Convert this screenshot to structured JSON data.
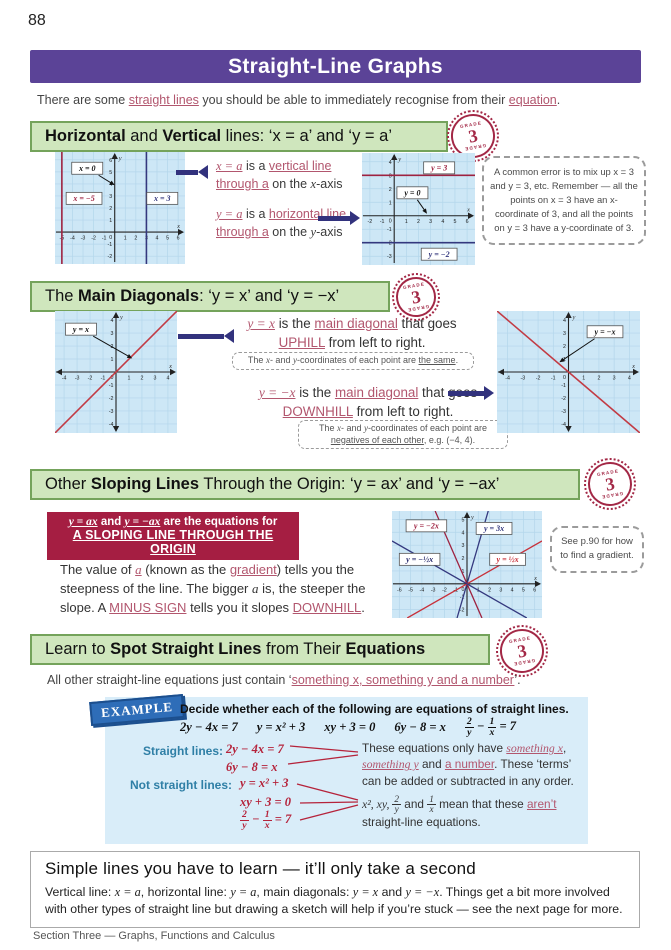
{
  "colors": {
    "purple": "#5b4397",
    "green_bg": "#cfe6bd",
    "green_border": "#74a35b",
    "crimson": "#b5233b",
    "navy": "#32327d",
    "rose": "#b2566e",
    "teal": "#2f7fa6",
    "graph_bg": "#cde7f6"
  },
  "page_number": "88",
  "banner": {
    "title": "Straight-Line Graphs"
  },
  "intro": [
    "There are some ",
    "straight lines",
    " you should be able to immediately recognise from their ",
    "equation",
    "."
  ],
  "grade": {
    "num": "3",
    "word": "GRADE"
  },
  "s1": {
    "title": [
      "Horizontal",
      " and ",
      "Vertical",
      " lines:  ‘x = a’ and ‘y = a’"
    ],
    "ann1": [
      "x = a",
      " is a ",
      "vertical line",
      " ",
      "through a",
      " on the ",
      "x",
      "-axis"
    ],
    "ann2": [
      "y = a",
      " is a ",
      "horizontal line",
      " ",
      "through a",
      " on the ",
      "y",
      "-axis"
    ],
    "note": "A common error is to mix up x = 3 and y = 3, etc.  Remember — all the points on x = 3 have an x-coordinate of 3, and all the points on y = 3 have a y-coordinate of 3."
  },
  "s2": {
    "title": [
      "The ",
      "Main Diagonals",
      ": ‘y = x’ and ‘y = −x’"
    ],
    "t1": [
      "y = x",
      " is the ",
      "main diagonal",
      " that goes ",
      "UPHILL",
      " from left to right."
    ],
    "n1": [
      "The ",
      "x",
      "- and ",
      "y",
      "-coordinates of each point are ",
      "the same",
      "."
    ],
    "t2": [
      "y = −x",
      " is the ",
      "main diagonal",
      " that goes ",
      "DOWNHILL",
      " from left to right."
    ],
    "n2": [
      "The ",
      "x",
      "- and ",
      "y",
      "-coordinates of each point are ",
      "negatives of each other",
      ", e.g. (−4, 4)."
    ]
  },
  "s3": {
    "title": [
      "Other ",
      "Sloping Lines",
      " Through the Origin:  ‘y = ax’  and  ‘y = −ax’"
    ],
    "box": [
      "y = ax",
      "  and  ",
      "y = −ax",
      "  are the equations for",
      "A SLOPING LINE THROUGH THE ORIGIN"
    ],
    "body": [
      "The value of ",
      "a",
      " (known as the ",
      "gradient",
      ") tells you the steepness of the line.  The bigger ",
      "a",
      " is, the steeper the slope.  A ",
      "MINUS SIGN",
      " tells you it slopes ",
      "DOWNHILL",
      "."
    ],
    "note": "See p.90 for how to find a gradient."
  },
  "s4": {
    "title": [
      "Learn to ",
      "Spot Straight Lines",
      " from Their ",
      "Equations"
    ],
    "line": [
      "All other straight-line equations just contain ‘",
      "something x, something y and a number",
      "’."
    ]
  },
  "example": {
    "badge": "EXAMPLE",
    "prompt": "Decide whether each of the following are equations of straight lines.",
    "eq1": "2y − 4x = 7",
    "eq2": "y = x² + 3",
    "eq3": "xy + 3 = 0",
    "eq4": "6y − 8 = x",
    "frac": {
      "n1": "2",
      "d1": "y",
      "op": "−",
      "n2": "1",
      "d2": "x",
      "rhs": "= 7"
    },
    "straight_label": "Straight lines:",
    "not_label": "Not straight lines:",
    "s_eq1": "2y − 4x = 7",
    "s_eq2": "6y − 8 = x",
    "n_eq1": "y = x² + 3",
    "n_eq2": "xy + 3 = 0",
    "r1": [
      "These equations only have ",
      "something x",
      ", ",
      "something y",
      " and ",
      "a number",
      ".  These ‘terms’ can be added or subtracted in any order."
    ],
    "r2a": "x², xy, ",
    "r2f1": {
      "n": "2",
      "d": "y"
    },
    "r2b": " and ",
    "r2f2": {
      "n": "1",
      "d": "x"
    },
    "r2c": " mean that these ",
    "r2d": "aren’t",
    "r2e": " straight-line equations."
  },
  "bottom": {
    "heading": "Simple lines you have to learn — it’ll only take a second",
    "body": [
      "Vertical line: ",
      "x = a",
      ", horizontal line: ",
      "y = a",
      ", main diagonals: ",
      "y = x",
      " and ",
      "y = −x",
      ".  Things get a bit more involved with other types of straight line but drawing a sketch will help if you’re stuck — see the next page for more."
    ]
  },
  "footer": "Section Three — Graphs, Functions and Calculus",
  "chart_data": [
    {
      "name": "horizontal-vertical-graph",
      "type": "line",
      "xmin": -5,
      "xmax": 6,
      "ymin": -2,
      "ymax": 6,
      "pad": 0.65,
      "xlabel": "x",
      "ylabel": "y",
      "lines": [
        {
          "kind": "v",
          "a": -5,
          "color": "#9e2240",
          "w": 1.6
        },
        {
          "kind": "v",
          "a": 3,
          "color": "#34387e",
          "w": 1.6
        }
      ],
      "labels": [
        {
          "text": "x = 0",
          "x": -2.6,
          "y": 5.3,
          "color": "#111",
          "ax": 0,
          "ay": 3.9
        },
        {
          "text": "x = −5",
          "x": -2.9,
          "y": 2.8,
          "color": "#9e2240"
        },
        {
          "text": "x = 3",
          "x": 4.5,
          "y": 2.8,
          "color": "#34387e"
        }
      ]
    },
    {
      "name": "horizontal-lines-graph",
      "type": "line",
      "xmin": -2,
      "xmax": 6,
      "ymin": -3,
      "ymax": 4,
      "pad": 0.65,
      "xlabel": "x",
      "ylabel": "y",
      "lines": [
        {
          "kind": "h",
          "a": 3,
          "color": "#9e2240",
          "w": 1.6
        },
        {
          "kind": "h",
          "a": -2,
          "color": "#34387e",
          "w": 1.6
        }
      ],
      "labels": [
        {
          "text": "y = 3",
          "x": 3.7,
          "y": 3.55,
          "color": "#9e2240"
        },
        {
          "text": "y = 0",
          "x": 1.5,
          "y": 1.7,
          "color": "#111",
          "ax": 2.7,
          "ay": 0.15
        },
        {
          "text": "y = −2",
          "x": 3.7,
          "y": -2.85,
          "color": "#34387e"
        }
      ]
    },
    {
      "name": "main-diagonal-uphill-graph",
      "type": "line",
      "xmin": -4,
      "xmax": 4,
      "ymin": -4,
      "ymax": 4,
      "pad": 0.7,
      "dbl": true,
      "xlabel": "x",
      "ylabel": "y",
      "lines": [
        {
          "kind": "d",
          "a": 1,
          "color": "#c23b44",
          "w": 1.6
        }
      ],
      "labels": [
        {
          "text": "y = x",
          "x": -2.7,
          "y": 3.3,
          "color": "#111",
          "ax": 1.25,
          "ay": 1.05
        }
      ]
    },
    {
      "name": "main-diagonal-downhill-graph",
      "type": "line",
      "xmin": -4,
      "xmax": 4,
      "ymin": -4,
      "ymax": 4,
      "pad": 0.7,
      "dbl": true,
      "xlabel": "x",
      "ylabel": "y",
      "lines": [
        {
          "kind": "d",
          "a": -1,
          "color": "#c23b44",
          "w": 1.6
        }
      ],
      "labels": [
        {
          "text": "y = −x",
          "x": 2.4,
          "y": 3.1,
          "color": "#111",
          "ax": -0.6,
          "ay": 0.75
        }
      ]
    },
    {
      "name": "sloping-lines-graph",
      "type": "line",
      "xmin": -6,
      "xmax": 6,
      "ymin": -2,
      "ymax": 5,
      "pad": 0.65,
      "xlabel": "x",
      "ylabel": "y",
      "lines": [
        {
          "kind": "d",
          "a": 3,
          "color": "#34387e",
          "w": 1.3
        },
        {
          "kind": "d",
          "a": -2,
          "color": "#9e2240",
          "w": 1.3
        },
        {
          "kind": "d",
          "a": 0.5,
          "color": "#c8313a",
          "w": 1.3
        },
        {
          "kind": "d",
          "a": -0.5,
          "color": "#34387e",
          "w": 1.3
        }
      ],
      "labels": [
        {
          "text": "y = −2x",
          "x": -3.6,
          "y": 4.5,
          "color": "#9e2240"
        },
        {
          "text": "y = 3x",
          "x": 2.4,
          "y": 4.3,
          "color": "#34387e"
        },
        {
          "text": "y = −½x",
          "x": -4.2,
          "y": 1.9,
          "color": "#2b2e6e"
        },
        {
          "text": "y = ½x",
          "x": 3.6,
          "y": 1.9,
          "color": "#c8313a"
        }
      ]
    }
  ]
}
